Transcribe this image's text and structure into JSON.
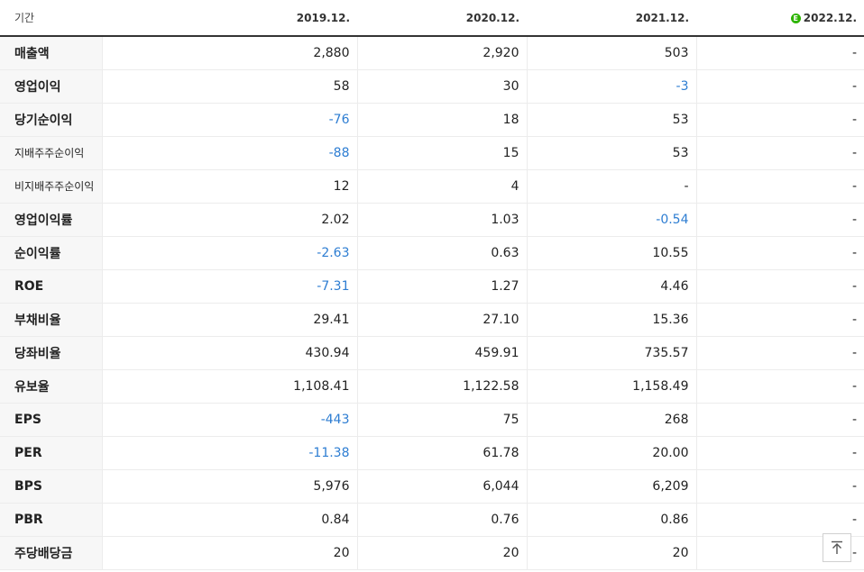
{
  "header": {
    "period_label": "기간",
    "columns": [
      {
        "label": "2019.12.",
        "estimate": false
      },
      {
        "label": "2020.12.",
        "estimate": false
      },
      {
        "label": "2021.12.",
        "estimate": false
      },
      {
        "label": "2022.12.",
        "estimate": true
      }
    ],
    "estimate_badge": "E"
  },
  "rows": [
    {
      "name": "매출액",
      "small": false,
      "group_start": false,
      "values": [
        "2,880",
        "2,920",
        "503",
        "-"
      ]
    },
    {
      "name": "영업이익",
      "small": false,
      "group_start": false,
      "values": [
        "58",
        "30",
        "-3",
        "-"
      ]
    },
    {
      "name": "당기순이익",
      "small": false,
      "group_start": false,
      "values": [
        "-76",
        "18",
        "53",
        "-"
      ]
    },
    {
      "name": "지배주주순이익",
      "small": true,
      "group_start": false,
      "values": [
        "-88",
        "15",
        "53",
        "-"
      ]
    },
    {
      "name": "비지배주주순이익",
      "small": true,
      "group_start": false,
      "values": [
        "12",
        "4",
        "-",
        "-"
      ]
    },
    {
      "name": "영업이익률",
      "small": false,
      "group_start": true,
      "values": [
        "2.02",
        "1.03",
        "-0.54",
        "-"
      ]
    },
    {
      "name": "순이익률",
      "small": false,
      "group_start": false,
      "values": [
        "-2.63",
        "0.63",
        "10.55",
        "-"
      ]
    },
    {
      "name": "ROE",
      "small": false,
      "group_start": false,
      "values": [
        "-7.31",
        "1.27",
        "4.46",
        "-"
      ]
    },
    {
      "name": "부채비율",
      "small": false,
      "group_start": true,
      "values": [
        "29.41",
        "27.10",
        "15.36",
        "-"
      ]
    },
    {
      "name": "당좌비율",
      "small": false,
      "group_start": false,
      "values": [
        "430.94",
        "459.91",
        "735.57",
        "-"
      ]
    },
    {
      "name": "유보율",
      "small": false,
      "group_start": false,
      "values": [
        "1,108.41",
        "1,122.58",
        "1,158.49",
        "-"
      ]
    },
    {
      "name": "EPS",
      "small": false,
      "group_start": true,
      "values": [
        "-443",
        "75",
        "268",
        "-"
      ]
    },
    {
      "name": "PER",
      "small": false,
      "group_start": false,
      "values": [
        "-11.38",
        "61.78",
        "20.00",
        "-"
      ]
    },
    {
      "name": "BPS",
      "small": false,
      "group_start": false,
      "values": [
        "5,976",
        "6,044",
        "6,209",
        "-"
      ]
    },
    {
      "name": "PBR",
      "small": false,
      "group_start": false,
      "values": [
        "0.84",
        "0.76",
        "0.86",
        "-"
      ]
    },
    {
      "name": "주당배당금",
      "small": false,
      "group_start": true,
      "values": [
        "20",
        "20",
        "20",
        "-"
      ]
    }
  ],
  "colors": {
    "negative": "#2d7dd2",
    "estimate_badge": "#2db400"
  },
  "scroll_top_icon": "arrow-up-to-top-icon"
}
